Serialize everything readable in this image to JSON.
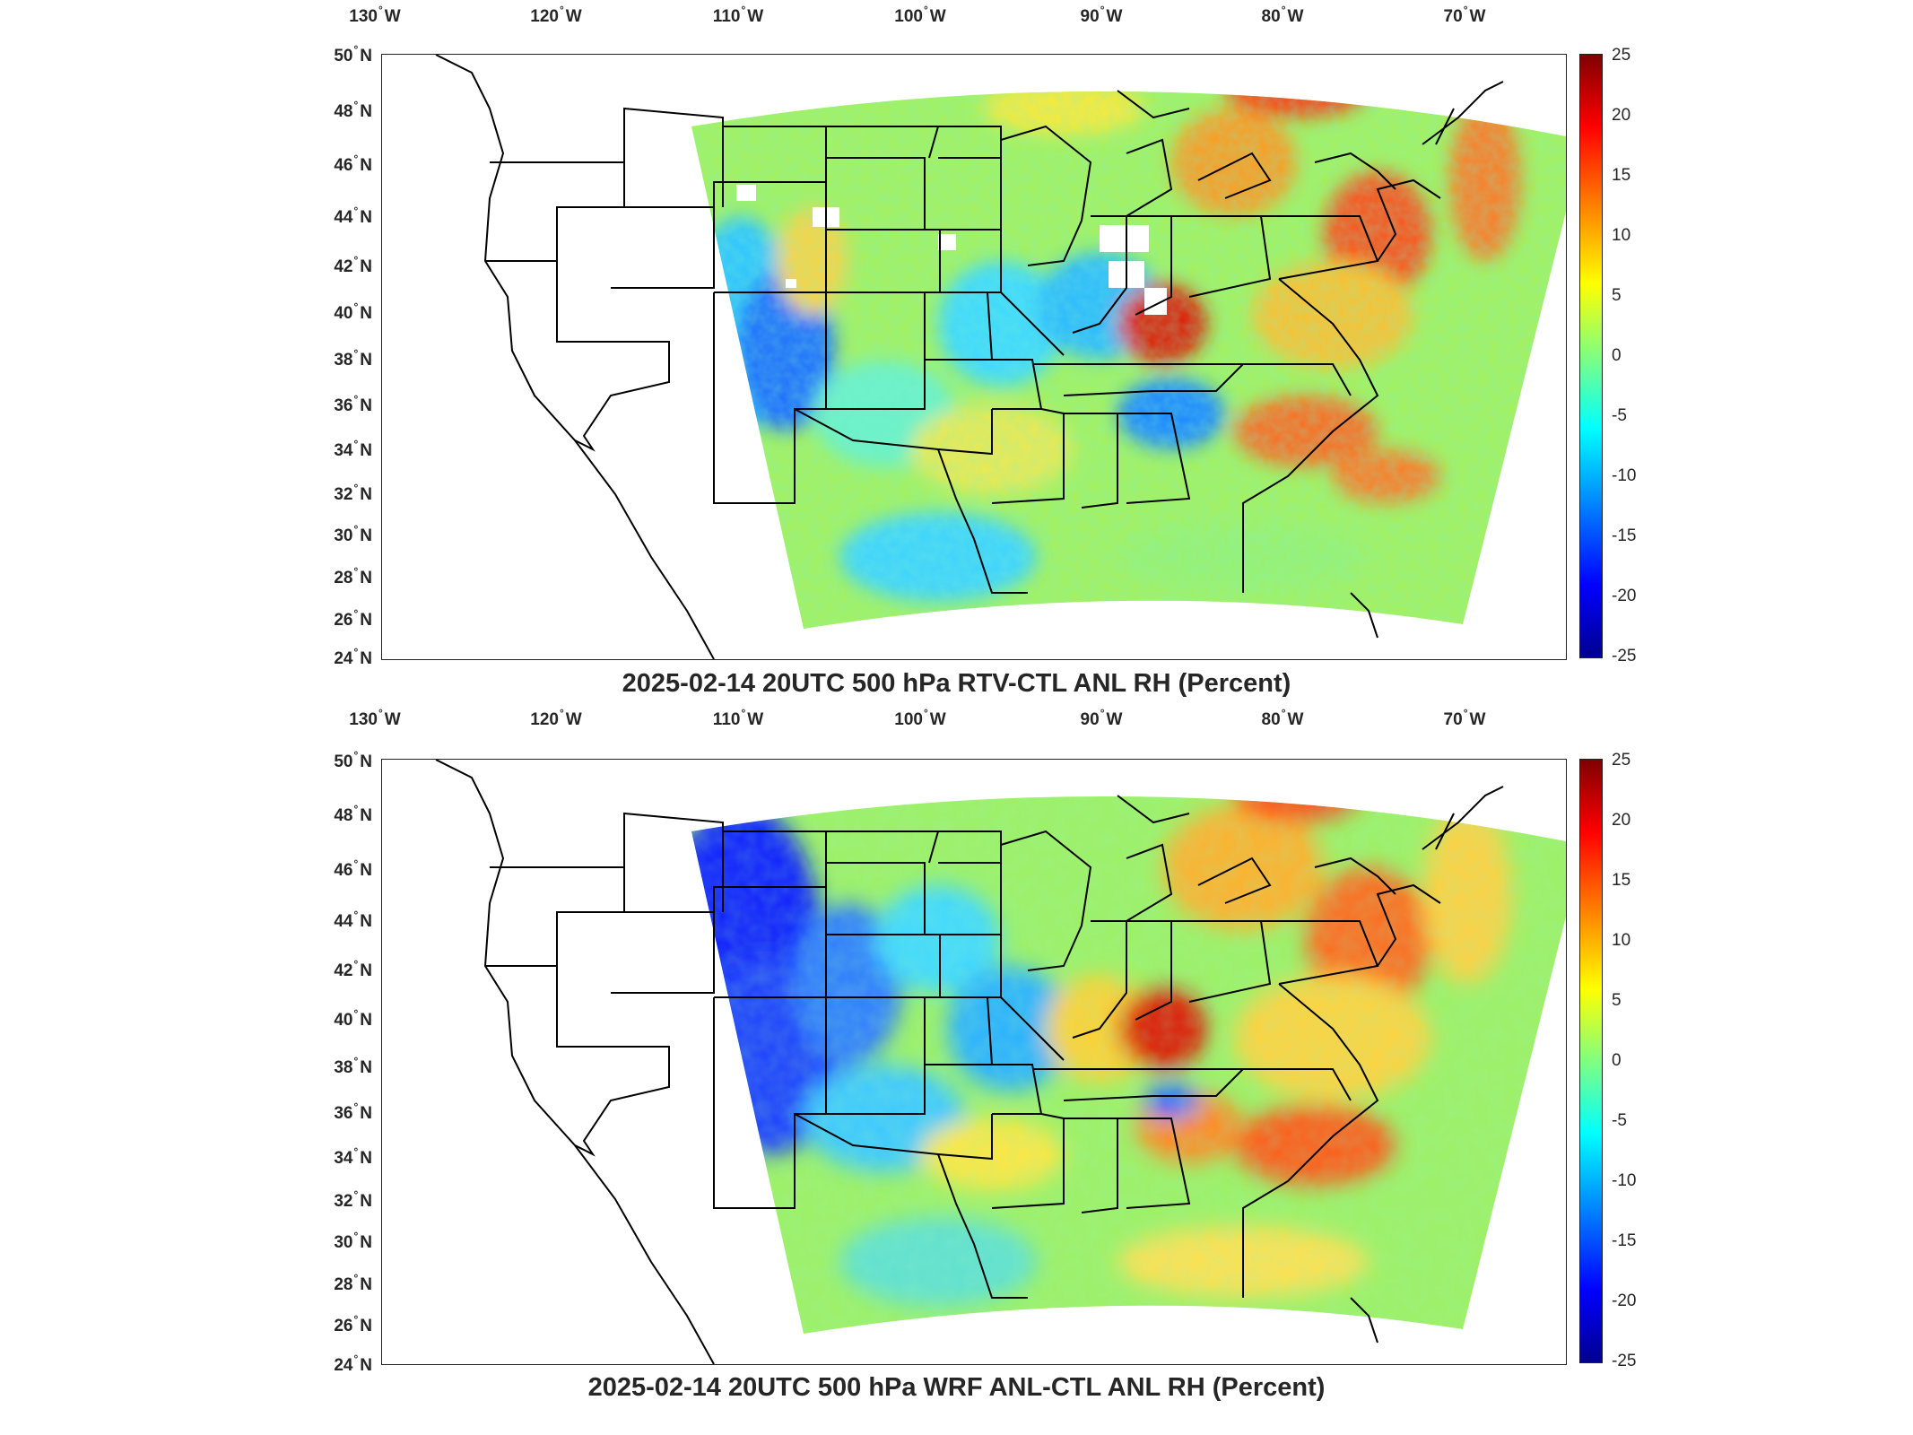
{
  "panels": [
    {
      "title": "2025-02-14 20UTC 500 hPa RTV-CTL ANL RH (Percent)",
      "lon_labels": [
        "130",
        "120",
        "110",
        "100",
        "90",
        "80",
        "70"
      ],
      "lon_hemisphere": "W",
      "lat_labels": [
        "50",
        "48",
        "46",
        "44",
        "42",
        "40",
        "38",
        "36",
        "34",
        "32",
        "30",
        "28",
        "26",
        "24"
      ],
      "lat_hemisphere": "N",
      "colorbar": {
        "ticks": [
          "25",
          "20",
          "15",
          "10",
          "5",
          "0",
          "-5",
          "-10",
          "-15",
          "-20",
          "-25"
        ]
      }
    },
    {
      "title": "2025-02-14 20UTC 500 hPa WRF ANL-CTL ANL RH (Percent)",
      "lon_labels": [
        "130",
        "120",
        "110",
        "100",
        "90",
        "80",
        "70"
      ],
      "lon_hemisphere": "W",
      "lat_labels": [
        "50",
        "48",
        "46",
        "44",
        "42",
        "40",
        "38",
        "36",
        "34",
        "32",
        "30",
        "28",
        "26",
        "24"
      ],
      "lat_hemisphere": "N",
      "colorbar": {
        "ticks": [
          "25",
          "20",
          "15",
          "10",
          "5",
          "0",
          "-5",
          "-10",
          "-15",
          "-20",
          "-25"
        ]
      }
    }
  ],
  "colormap": [
    "#00008f",
    "#0000ff",
    "#0080ff",
    "#00ffff",
    "#80ff80",
    "#ffff00",
    "#ff8000",
    "#ff0000",
    "#800000"
  ],
  "colors": {
    "border_lines": "#000000",
    "background": "#ffffff"
  }
}
